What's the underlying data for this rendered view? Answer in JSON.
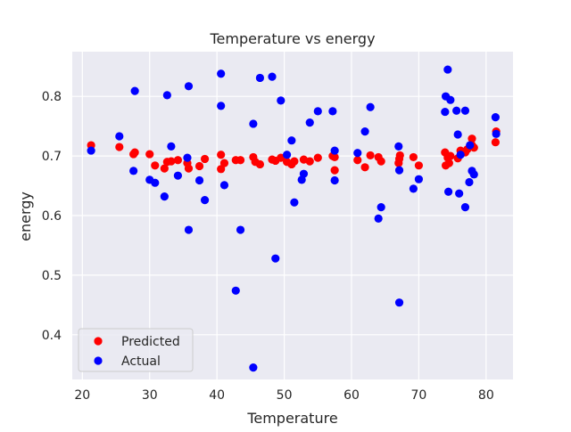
{
  "chart_data": {
    "type": "scatter",
    "title": "Temperature vs energy",
    "xlabel": "Temperature",
    "ylabel": "energy",
    "xlim": [
      18.5,
      84
    ],
    "ylim": [
      0.325,
      0.875
    ],
    "xticks": [
      20,
      30,
      40,
      50,
      60,
      70,
      80
    ],
    "yticks": [
      0.4,
      0.5,
      0.6,
      0.7,
      0.8
    ],
    "xtick_labels": [
      "20",
      "30",
      "40",
      "50",
      "60",
      "70",
      "80"
    ],
    "ytick_labels": [
      "0.4",
      "0.5",
      "0.6",
      "0.7",
      "0.8"
    ],
    "grid": true,
    "legend_position": "lower-left",
    "series": [
      {
        "name": "Predicted",
        "color": "#ff0000",
        "points": [
          [
            21.3,
            0.718
          ],
          [
            25.5,
            0.715
          ],
          [
            27.6,
            0.703
          ],
          [
            27.8,
            0.706
          ],
          [
            30.0,
            0.703
          ],
          [
            30.8,
            0.684
          ],
          [
            32.2,
            0.679
          ],
          [
            32.6,
            0.69
          ],
          [
            33.2,
            0.691
          ],
          [
            34.2,
            0.693
          ],
          [
            35.6,
            0.688
          ],
          [
            35.8,
            0.679
          ],
          [
            37.4,
            0.683
          ],
          [
            38.2,
            0.695
          ],
          [
            40.6,
            0.678
          ],
          [
            40.6,
            0.702
          ],
          [
            41.1,
            0.688
          ],
          [
            42.8,
            0.693
          ],
          [
            43.5,
            0.693
          ],
          [
            45.4,
            0.698
          ],
          [
            45.7,
            0.69
          ],
          [
            46.4,
            0.686
          ],
          [
            48.2,
            0.694
          ],
          [
            48.7,
            0.692
          ],
          [
            49.5,
            0.697
          ],
          [
            50.4,
            0.69
          ],
          [
            51.1,
            0.686
          ],
          [
            51.5,
            0.691
          ],
          [
            52.9,
            0.694
          ],
          [
            53.8,
            0.691
          ],
          [
            55.0,
            0.697
          ],
          [
            57.2,
            0.7
          ],
          [
            57.5,
            0.698
          ],
          [
            57.5,
            0.676
          ],
          [
            60.9,
            0.693
          ],
          [
            62.0,
            0.681
          ],
          [
            62.8,
            0.701
          ],
          [
            64.0,
            0.698
          ],
          [
            64.4,
            0.691
          ],
          [
            67.0,
            0.688
          ],
          [
            67.1,
            0.695
          ],
          [
            67.2,
            0.701
          ],
          [
            69.2,
            0.698
          ],
          [
            70.0,
            0.684
          ],
          [
            73.9,
            0.706
          ],
          [
            74.0,
            0.684
          ],
          [
            74.3,
            0.697
          ],
          [
            74.5,
            0.688
          ],
          [
            74.7,
            0.7
          ],
          [
            75.8,
            0.696
          ],
          [
            76.2,
            0.709
          ],
          [
            76.9,
            0.706
          ],
          [
            77.2,
            0.711
          ],
          [
            77.9,
            0.729
          ],
          [
            77.9,
            0.718
          ],
          [
            78.2,
            0.714
          ],
          [
            81.4,
            0.723
          ],
          [
            81.5,
            0.741
          ]
        ]
      },
      {
        "name": "Actual",
        "color": "#0000ff",
        "points": [
          [
            21.3,
            0.709
          ],
          [
            25.5,
            0.733
          ],
          [
            27.6,
            0.675
          ],
          [
            27.8,
            0.809
          ],
          [
            30.0,
            0.66
          ],
          [
            30.8,
            0.655
          ],
          [
            32.2,
            0.632
          ],
          [
            32.6,
            0.802
          ],
          [
            33.2,
            0.716
          ],
          [
            34.2,
            0.667
          ],
          [
            35.6,
            0.697
          ],
          [
            35.8,
            0.817
          ],
          [
            35.8,
            0.576
          ],
          [
            37.4,
            0.659
          ],
          [
            38.2,
            0.626
          ],
          [
            40.6,
            0.838
          ],
          [
            40.6,
            0.784
          ],
          [
            41.1,
            0.651
          ],
          [
            42.8,
            0.474
          ],
          [
            43.5,
            0.576
          ],
          [
            45.4,
            0.754
          ],
          [
            45.4,
            0.345
          ],
          [
            46.4,
            0.831
          ],
          [
            48.2,
            0.833
          ],
          [
            48.7,
            0.528
          ],
          [
            49.5,
            0.793
          ],
          [
            50.4,
            0.702
          ],
          [
            51.1,
            0.726
          ],
          [
            51.5,
            0.622
          ],
          [
            52.9,
            0.67
          ],
          [
            52.6,
            0.66
          ],
          [
            53.8,
            0.756
          ],
          [
            55.0,
            0.775
          ],
          [
            57.2,
            0.775
          ],
          [
            57.5,
            0.709
          ],
          [
            57.5,
            0.659
          ],
          [
            60.9,
            0.705
          ],
          [
            62.0,
            0.741
          ],
          [
            62.8,
            0.782
          ],
          [
            64.0,
            0.595
          ],
          [
            64.4,
            0.614
          ],
          [
            67.0,
            0.716
          ],
          [
            67.1,
            0.676
          ],
          [
            67.1,
            0.454
          ],
          [
            69.2,
            0.645
          ],
          [
            70.0,
            0.661
          ],
          [
            73.9,
            0.774
          ],
          [
            74.0,
            0.8
          ],
          [
            74.3,
            0.845
          ],
          [
            74.4,
            0.64
          ],
          [
            74.7,
            0.794
          ],
          [
            75.6,
            0.776
          ],
          [
            75.8,
            0.736
          ],
          [
            76.0,
            0.637
          ],
          [
            76.2,
            0.702
          ],
          [
            76.9,
            0.614
          ],
          [
            76.9,
            0.776
          ],
          [
            77.5,
            0.656
          ],
          [
            77.6,
            0.718
          ],
          [
            77.9,
            0.675
          ],
          [
            78.2,
            0.669
          ],
          [
            81.4,
            0.765
          ],
          [
            81.5,
            0.737
          ]
        ]
      }
    ]
  }
}
